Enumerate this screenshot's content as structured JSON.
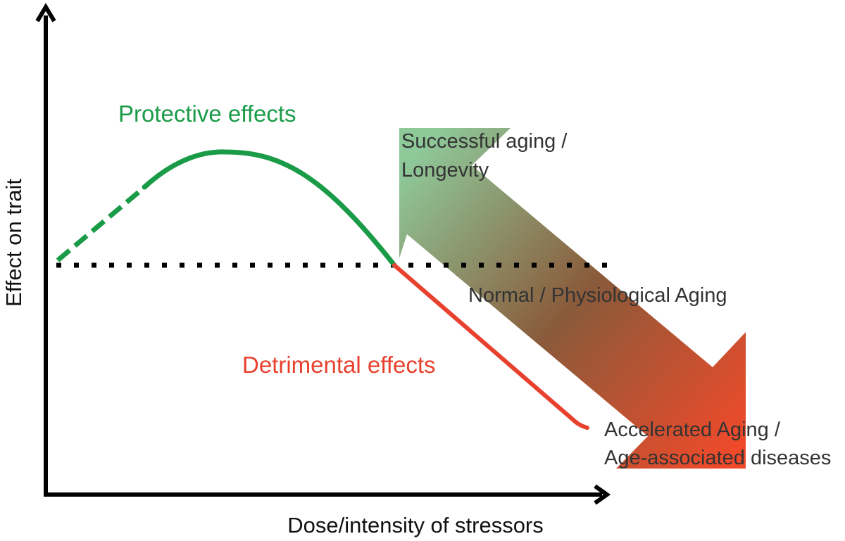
{
  "axes": {
    "y_label": "Effect on trait",
    "x_label": "Dose/intensity of stressors"
  },
  "curve_labels": {
    "protective": "Protective effects",
    "detrimental": "Detrimental effects"
  },
  "arrow_labels": {
    "top_line1": "Successful aging /",
    "top_line2": "Longevity",
    "middle": "Normal / Physiological Aging",
    "bottom_line1": "Accelerated Aging /",
    "bottom_line2": "Age-associated diseases"
  },
  "colors": {
    "protective": "#1a9b47",
    "detrimental": "#e8412e",
    "axis": "#000000",
    "baseline": "#000000",
    "arrow_start": "#8ec99a",
    "arrow_end": "#f04a2a",
    "text": "#333333"
  }
}
